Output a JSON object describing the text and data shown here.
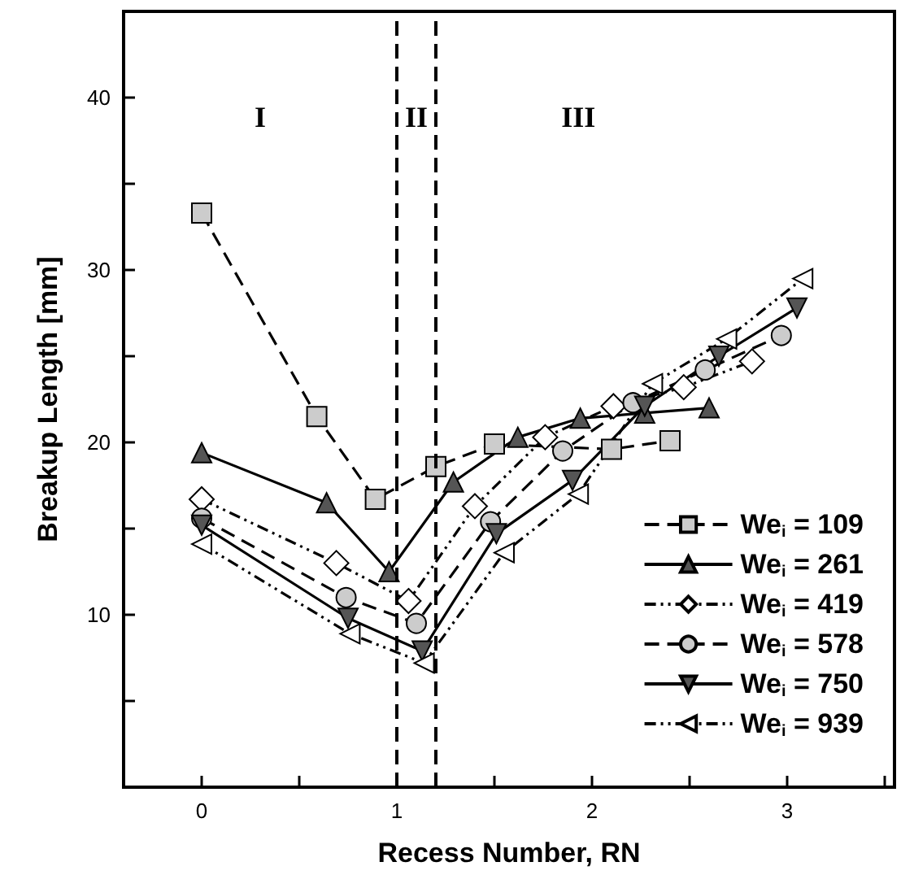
{
  "chart_data": {
    "type": "line",
    "xlabel": "Recess Number, RN",
    "ylabel": "Breakup Length [mm]",
    "xlim": [
      -0.4,
      3.55
    ],
    "xticks": [
      0,
      {
        "value": 0.5,
        "label": null
      },
      1,
      {
        "value": 1.5,
        "label": null
      },
      2,
      {
        "value": 2.5,
        "label": null
      },
      3,
      {
        "value": 3.5,
        "label": null
      }
    ],
    "ylim": [
      0,
      45
    ],
    "yticks": [
      {
        "value": 5,
        "label": null
      },
      10,
      {
        "value": 15,
        "label": null
      },
      20,
      {
        "value": 25,
        "label": null
      },
      30,
      {
        "value": 35,
        "label": null
      },
      40
    ],
    "grid": false,
    "legend": "bottom right",
    "series": [
      {
        "name": "We$_{i}$ = 109",
        "color": "#cccccc",
        "marker": "square",
        "line_style": "dashed",
        "x": [
          0,
          0.59,
          0.89,
          1.2,
          1.5,
          2.1,
          2.4
        ],
        "values": [
          33.3,
          21.5,
          16.7,
          18.6,
          19.9,
          19.6,
          20.1
        ]
      },
      {
        "name": "We$_{i}$ = 261",
        "color": "#555555",
        "marker": "triangle",
        "line_style": "solid",
        "x": [
          0,
          0.64,
          0.96,
          1.29,
          1.62,
          1.94,
          2.27,
          2.6
        ],
        "values": [
          19.4,
          16.5,
          12.5,
          17.7,
          20.3,
          21.4,
          21.7,
          22.0
        ]
      },
      {
        "name": "We$_{i}$ = 419",
        "color": "#ffffff",
        "marker": "diamond",
        "line_style": "dotted",
        "x": [
          0,
          0.69,
          1.06,
          1.4,
          1.76,
          2.11,
          2.47,
          2.82
        ],
        "values": [
          16.7,
          13.0,
          10.8,
          16.3,
          20.3,
          22.1,
          23.2,
          24.7
        ]
      },
      {
        "name": "We$_{i}$ = 578",
        "color": "#cccccc",
        "marker": "circle",
        "line_style": "dashed",
        "x": [
          0,
          0.74,
          1.1,
          1.48,
          1.85,
          2.21,
          2.58,
          2.97
        ],
        "values": [
          15.6,
          11.0,
          9.5,
          15.4,
          19.5,
          22.3,
          24.2,
          26.2
        ]
      },
      {
        "name": "We$_{i}$ = 750",
        "color": "#555555",
        "marker": "triangle_down",
        "line_style": "solid",
        "x": [
          0,
          0.75,
          1.13,
          1.51,
          1.9,
          2.27,
          2.65,
          3.05
        ],
        "values": [
          15.2,
          9.8,
          7.9,
          14.7,
          17.8,
          22.1,
          25.0,
          27.8
        ]
      },
      {
        "name": "We$_{i}$ = 939",
        "color": "#ffffff",
        "marker": "triangle_left",
        "line_style": "dotted",
        "x": [
          0,
          0.76,
          1.14,
          1.55,
          1.93,
          2.31,
          2.69,
          3.08
        ],
        "values": [
          14.1,
          8.9,
          7.2,
          13.6,
          17.0,
          23.4,
          26.0,
          29.5
        ]
      }
    ],
    "ref_lines": [
      {
        "axis": "x",
        "value": 1,
        "line_style": "dashed"
      },
      {
        "axis": "x",
        "value": 1.2,
        "line_style": "dashed"
      }
    ],
    "annotations": [
      "I",
      "II",
      "III"
    ]
  }
}
